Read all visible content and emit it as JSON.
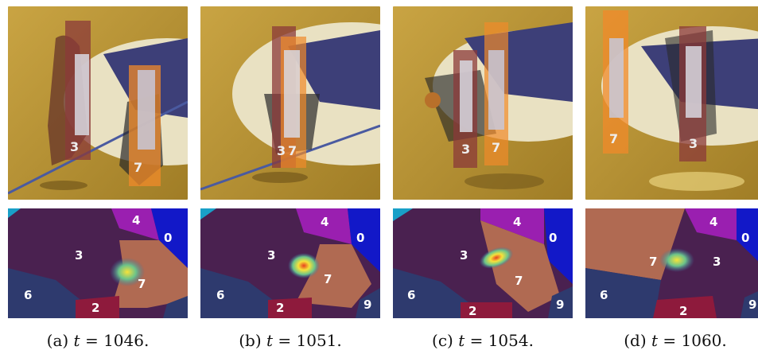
{
  "panels": [
    {
      "caption_prefix": "(a) ",
      "caption_var": "t",
      "caption_value": " = 1046.",
      "box_labels": {
        "red": "3",
        "orange": "7"
      },
      "map_labels": [
        "4",
        "0",
        "3",
        "7",
        "6",
        "2"
      ]
    },
    {
      "caption_prefix": "(b) ",
      "caption_var": "t",
      "caption_value": " = 1051.",
      "box_labels": {
        "red": "3",
        "orange": "7"
      },
      "map_labels": [
        "4",
        "0",
        "3",
        "7",
        "6",
        "2",
        "9"
      ]
    },
    {
      "caption_prefix": "(c) ",
      "caption_var": "t",
      "caption_value": " = 1054.",
      "box_labels": {
        "red": "3",
        "orange": "7"
      },
      "map_labels": [
        "4",
        "0",
        "3",
        "7",
        "6",
        "2",
        "9"
      ]
    },
    {
      "caption_prefix": "(d) ",
      "caption_var": "t",
      "caption_value": " = 1060.",
      "box_labels": {
        "red": "3",
        "orange": "7"
      },
      "map_labels": [
        "4",
        "0",
        "7",
        "3",
        "6",
        "2",
        "9"
      ]
    }
  ],
  "colors": {
    "court_wood": "#b5902f",
    "court_dark": "#8a6a1e",
    "logo_navy": "#3d3f78",
    "red_box": "#8b3a3a",
    "orange_box": "#f08a2a",
    "region_dark_purple": "#4a2150",
    "region_magenta": "#9a1fb0",
    "region_blue": "#1218c8",
    "region_brown": "#b06a52",
    "region_navy": "#2e3a6e",
    "region_crimson": "#8e1a3c",
    "region_cyan": "#19a0c8"
  }
}
